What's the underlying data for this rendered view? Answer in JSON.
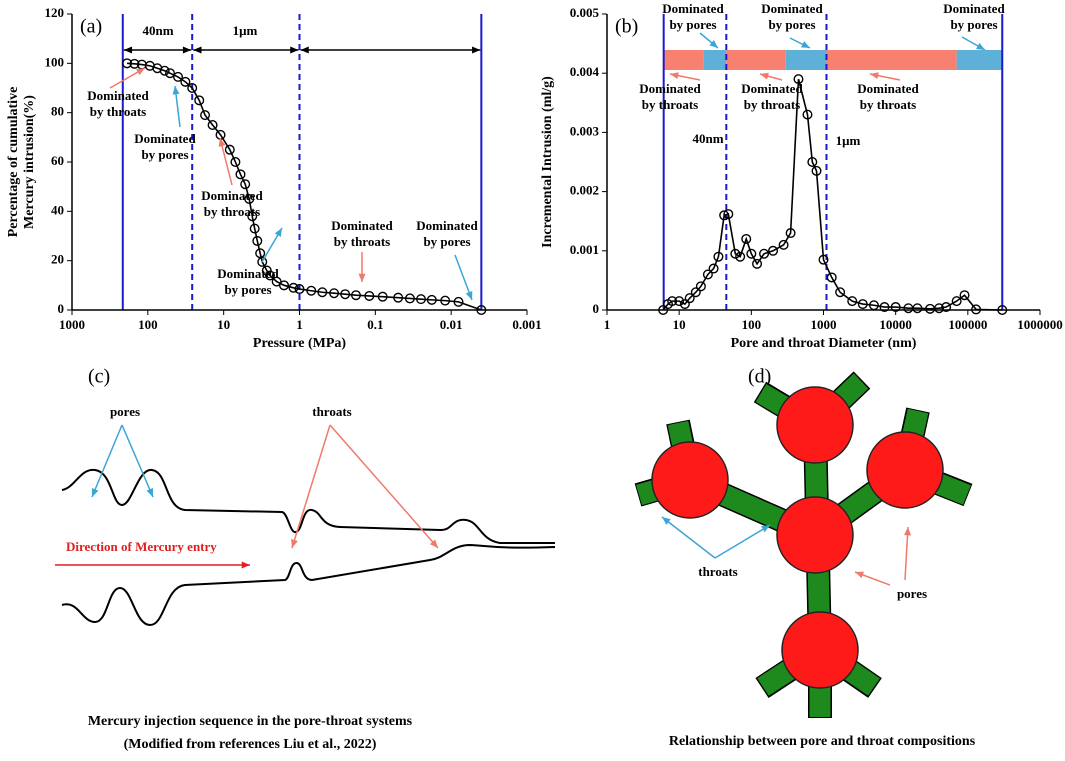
{
  "chart_data": [
    {
      "type": "line",
      "label": "(a)",
      "x_label": "Pressure (MPa)",
      "y_label": [
        "Percentage of cumulative",
        "Mercury intrusion(%)"
      ],
      "x": [
        188,
        150,
        120,
        94,
        75,
        60,
        51,
        40,
        32,
        26,
        21,
        17.6,
        14,
        11,
        8.3,
        7,
        6,
        5.2,
        4.6,
        4.2,
        3.9,
        3.6,
        3.3,
        3.1,
        2.7,
        2.45,
        2,
        1.6,
        1.2,
        1,
        0.7,
        0.5,
        0.35,
        0.25,
        0.18,
        0.12,
        0.08,
        0.05,
        0.035,
        0.025,
        0.018,
        0.012,
        0.008,
        0.004
      ],
      "series": [
        {
          "color": "#000000",
          "values": [
            100,
            99.8,
            99.5,
            99,
            98,
            97,
            96,
            94.5,
            92.5,
            90,
            85,
            79,
            75,
            71,
            65,
            60,
            55,
            51,
            45,
            38,
            33,
            28,
            23,
            19.5,
            16,
            14,
            11.5,
            10,
            9,
            8.5,
            7.8,
            7.2,
            6.8,
            6.4,
            6,
            5.7,
            5.4,
            5,
            4.7,
            4.4,
            4.1,
            3.8,
            3.3,
            0
          ]
        }
      ],
      "marker": "circle",
      "log_x": true,
      "xlim": [
        1000,
        0.001
      ],
      "xticks": [
        1000,
        100,
        10,
        1,
        0.1,
        0.01,
        0.001
      ],
      "ylim": [
        0,
        120
      ],
      "yticks": [
        0,
        20,
        40,
        60,
        80,
        100,
        120
      ],
      "vline_color": "#1a1acc",
      "vlines": [
        {
          "x": 214,
          "style": "solid"
        },
        {
          "x": 26,
          "style": "dashed"
        },
        {
          "x": 1,
          "style": "dashed"
        },
        {
          "x": 0.004,
          "style": "solid"
        }
      ],
      "span_arrows": true,
      "notes": [
        "40nm",
        "1μm"
      ],
      "annotations": [
        {
          "lines": [
            "Dominated",
            "by throats"
          ],
          "color": "#f07a6a"
        },
        {
          "lines": [
            "Dominated",
            "by pores"
          ],
          "color": "#3aa6d6"
        },
        {
          "lines": [
            "Dominated",
            "by throats"
          ],
          "color": "#f07a6a"
        },
        {
          "lines": [
            "Dominated",
            "by pores"
          ],
          "color": "#3aa6d6"
        },
        {
          "lines": [
            "Dominated",
            "by throats"
          ],
          "color": "#f07a6a"
        },
        {
          "lines": [
            "Dominated",
            "by pores"
          ],
          "color": "#3aa6d6"
        }
      ]
    },
    {
      "type": "line",
      "label": "(b)",
      "x_label": "Pore and throat Diameter (nm)",
      "y_label": [
        "Incremental Intrusion (ml/g)"
      ],
      "x": [
        6,
        7,
        8,
        10,
        12,
        14,
        17,
        20,
        25,
        30,
        35,
        42,
        48,
        60,
        70,
        85,
        100,
        120,
        150,
        200,
        280,
        350,
        450,
        600,
        700,
        800,
        1000,
        1300,
        1700,
        2500,
        3500,
        5000,
        7000,
        10000,
        15000,
        20000,
        30000,
        40000,
        50000,
        70000,
        90000,
        130000,
        300000
      ],
      "series": [
        {
          "color": "#000000",
          "values": [
            0,
            0.0001,
            0.00015,
            0.00015,
            0.0001,
            0.0002,
            0.0003,
            0.0004,
            0.0006,
            0.0007,
            0.0009,
            0.0016,
            0.00162,
            0.00095,
            0.0009,
            0.0012,
            0.00095,
            0.00078,
            0.00095,
            0.001,
            0.0011,
            0.0013,
            0.0039,
            0.0033,
            0.0025,
            0.00235,
            0.00085,
            0.00055,
            0.0003,
            0.00015,
            0.0001,
            8e-05,
            5e-05,
            5e-05,
            3e-05,
            3e-05,
            2e-05,
            3e-05,
            5e-05,
            0.00015,
            0.00025,
            1e-05,
            0
          ]
        }
      ],
      "marker": "circle",
      "log_x": true,
      "xlim": [
        1,
        1000000
      ],
      "xticks": [
        1,
        10,
        100,
        1000,
        10000,
        100000,
        1000000
      ],
      "ylim": [
        0,
        0.005
      ],
      "yticks": [
        0,
        0.001,
        0.002,
        0.003,
        0.004,
        0.005
      ],
      "vline_color": "#1a1acc",
      "vlines": [
        {
          "x": 6.1,
          "style": "solid"
        },
        {
          "x": 45,
          "style": "dashed"
        },
        {
          "x": 1100,
          "style": "dashed"
        },
        {
          "x": 300000,
          "style": "solid"
        }
      ],
      "span_arrows": false,
      "notes": [
        "40nm",
        "1μm"
      ],
      "bands": [
        {
          "from": 6.1,
          "to": 22,
          "color": "#f88070"
        },
        {
          "from": 22,
          "to": 45,
          "color": "#5fb0d8"
        },
        {
          "from": 45,
          "to": 300,
          "color": "#f88070"
        },
        {
          "from": 300,
          "to": 1100,
          "color": "#5fb0d8"
        },
        {
          "from": 1100,
          "to": 70000,
          "color": "#f88070"
        },
        {
          "from": 70000,
          "to": 300000,
          "color": "#5fb0d8"
        }
      ],
      "annotations": [
        {
          "lines": [
            "Dominated",
            "by pores"
          ],
          "color": "#3aa6d6"
        },
        {
          "lines": [
            "Dominated",
            "by throats"
          ],
          "color": "#f07a6a"
        },
        {
          "lines": [
            "Dominated",
            "by pores"
          ],
          "color": "#3aa6d6"
        },
        {
          "lines": [
            "Dominated",
            "by throats"
          ],
          "color": "#f07a6a"
        },
        {
          "lines": [
            "Dominated",
            "by throats"
          ],
          "color": "#f07a6a"
        },
        {
          "lines": [
            "Dominated",
            "by pores"
          ],
          "color": "#3aa6d6"
        }
      ]
    }
  ],
  "panels": {
    "c": {
      "label": "(c)",
      "pores": "pores",
      "throats": "throats",
      "direction": "Direction of Mercury entry",
      "caption": [
        "Mercury injection sequence in the pore-throat systems",
        "(Modified from references Liu et al., 2022)"
      ]
    },
    "d": {
      "label": "(d)",
      "throats": "throats",
      "pores": "pores",
      "caption": "Relationship between pore and throat compositions"
    }
  }
}
